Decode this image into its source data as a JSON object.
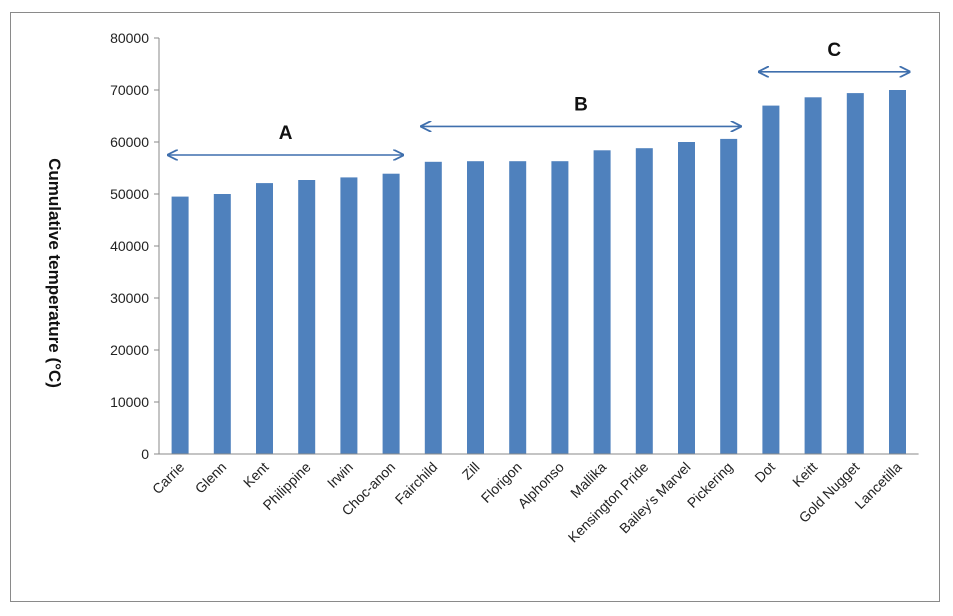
{
  "chart_data": {
    "type": "bar",
    "ylabel": "Cumulative temperature (°C)",
    "ylim": [
      0,
      80000
    ],
    "yticks": [
      "0",
      "10000",
      "20000",
      "30000",
      "40000",
      "50000",
      "60000",
      "70000",
      "80000"
    ],
    "grid": false,
    "categories": [
      "Carrie",
      "Glenn",
      "Kent",
      "Philippine",
      "Irwin",
      "Choc-anon",
      "Fairchild",
      "Zill",
      "Florigon",
      "Alphonso",
      "Mallika",
      "Kensington Pride",
      "Bailey's Marvel",
      "Pickering",
      "Dot",
      "Keitt",
      "Gold Nugget",
      "Lancetilla"
    ],
    "values": [
      49500,
      50000,
      52100,
      52700,
      53200,
      53900,
      56200,
      56300,
      56300,
      56300,
      58400,
      58800,
      60000,
      60600,
      67000,
      68600,
      69400,
      70000
    ],
    "bar_color": "#4f81bd",
    "annotations": [
      {
        "label": "A",
        "from": "Carrie",
        "to": "Choc-anon",
        "y": 57500
      },
      {
        "label": "B",
        "from": "Fairchild",
        "to": "Pickering",
        "y": 63000
      },
      {
        "label": "C",
        "from": "Dot",
        "to": "Lancetilla",
        "y": 73500
      }
    ],
    "arrow_color": "#3f6fad"
  }
}
